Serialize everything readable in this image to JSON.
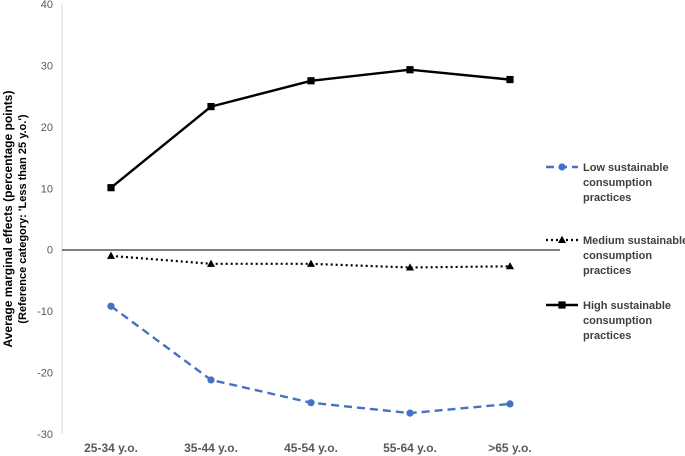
{
  "chart_data": {
    "type": "line",
    "categories": [
      "25-34 y.o.",
      "35-44 y.o.",
      "45-54 y.o.",
      "55-64 y.o.",
      ">65 y.o."
    ],
    "ylabel": "Average marginal effects (percentage points)",
    "ylabel_sub": "(Reference category: 'Less than 25 y.o.')",
    "ylim": [
      -30,
      40
    ],
    "yticks": [
      40,
      30,
      20,
      10,
      0,
      -10,
      -20,
      -30
    ],
    "grid": false,
    "legend_position": "right",
    "series": [
      {
        "name": "Low sustainable consumption practices",
        "name_lines": [
          "Low sustainable",
          "consumption",
          "practices"
        ],
        "values": [
          -9.2,
          -21.2,
          -24.9,
          -26.6,
          -25.1
        ],
        "color": "#4472C4",
        "marker": "circle",
        "dash": "dashed"
      },
      {
        "name": "Medium sustainable consumption practices",
        "name_lines": [
          "Medium sustainable",
          "consumption",
          "practices"
        ],
        "values": [
          -1.0,
          -2.3,
          -2.3,
          -2.9,
          -2.7
        ],
        "color": "#000000",
        "marker": "triangle",
        "dash": "dotted"
      },
      {
        "name": "High sustainable consumption practices",
        "name_lines": [
          "High sustainable",
          "consumption",
          "practices"
        ],
        "values": [
          10.1,
          23.3,
          27.5,
          29.3,
          27.7
        ],
        "color": "#000000",
        "marker": "square",
        "dash": "solid"
      }
    ]
  }
}
